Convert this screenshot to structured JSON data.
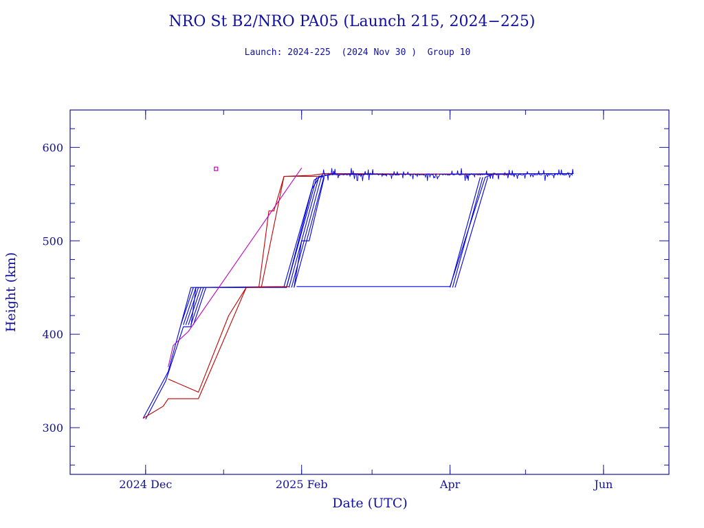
{
  "chart_data": {
    "type": "line",
    "title": "NRO St B2/NRO PA05 (Launch 215, 2024−225)",
    "subtitle": "Launch: 2024-225  (2024 Nov 30 )  Group 10",
    "xlabel": "Date (UTC)",
    "ylabel": "Height (km)",
    "x_axis_kind": "date",
    "xlim": [
      "2024-11-01",
      "2025-06-27"
    ],
    "ylim": [
      250,
      640
    ],
    "x_ticks": [
      {
        "date": "2024-12-01",
        "label": "2024 Dec"
      },
      {
        "date": "2025-02-01",
        "label": "2025 Feb"
      },
      {
        "date": "2025-04-01",
        "label": "Apr"
      },
      {
        "date": "2025-06-01",
        "label": "Jun"
      }
    ],
    "x_minor_ticks": [
      "2024-11-01",
      "2024-12-01",
      "2025-01-01",
      "2025-02-01",
      "2025-03-01",
      "2025-04-01",
      "2025-05-01",
      "2025-06-01"
    ],
    "y_ticks": [
      300,
      400,
      500,
      600
    ],
    "y_minor_step": 20,
    "grid": false,
    "colors": {
      "axis": "#1010a0",
      "blue_series": "#0000e0",
      "red_series": "#c00000",
      "magenta_series": "#c000c0"
    },
    "series": [
      {
        "color": "#0000e0",
        "lines": [
          [
            [
              "2024-11-30",
              310
            ],
            [
              "2024-12-10",
              360
            ],
            [
              "2024-12-19",
              450
            ],
            [
              "2025-01-25",
              451
            ],
            [
              "2025-02-05",
              555
            ],
            [
              "2025-02-08",
              568
            ],
            [
              "2025-02-12",
              571
            ],
            [
              "2025-05-20",
              572
            ]
          ],
          [
            [
              "2024-12-01",
              309
            ],
            [
              "2024-12-09",
              350
            ],
            [
              "2024-12-16",
              408
            ],
            [
              "2024-12-19",
              408
            ],
            [
              "2024-12-21",
              450
            ],
            [
              "2025-01-26",
              450
            ],
            [
              "2025-02-06",
              565
            ],
            [
              "2025-02-09",
              570
            ]
          ],
          [
            [
              "2024-12-15",
              410
            ],
            [
              "2024-12-20",
              450
            ]
          ],
          [
            [
              "2024-12-16",
              410
            ],
            [
              "2024-12-21",
              450
            ]
          ],
          [
            [
              "2024-12-17",
              410
            ],
            [
              "2024-12-22",
              450
            ]
          ],
          [
            [
              "2024-12-18",
              410
            ],
            [
              "2024-12-23",
              450
            ]
          ],
          [
            [
              "2024-12-19",
              410
            ],
            [
              "2024-12-24",
              450
            ]
          ],
          [
            [
              "2024-12-20",
              410
            ],
            [
              "2024-12-25",
              450
            ]
          ],
          [
            [
              "2025-01-26",
              450
            ],
            [
              "2025-02-07",
              568
            ]
          ],
          [
            [
              "2025-01-27",
              450
            ],
            [
              "2025-02-08",
              570
            ]
          ],
          [
            [
              "2025-01-28",
              450
            ],
            [
              "2025-02-09",
              570
            ]
          ],
          [
            [
              "2025-01-29",
              450
            ],
            [
              "2025-02-01",
              500
            ],
            [
              "2025-02-04",
              500
            ],
            [
              "2025-02-10",
              568
            ]
          ],
          [
            [
              "2025-01-29",
              450
            ],
            [
              "2025-02-10",
              570
            ]
          ],
          [
            [
              "2025-01-30",
              451
            ],
            [
              "2025-04-01",
              451
            ],
            [
              "2025-04-15",
              568
            ],
            [
              "2025-04-18",
              571
            ]
          ],
          [
            [
              "2025-04-01",
              450
            ],
            [
              "2025-04-13",
              568
            ]
          ],
          [
            [
              "2025-04-02",
              450
            ],
            [
              "2025-04-14",
              568
            ]
          ],
          [
            [
              "2025-04-03",
              450
            ],
            [
              "2025-04-16",
              568
            ]
          ]
        ]
      },
      {
        "color": "#c00000",
        "lines": [
          [
            [
              "2024-11-30",
              310
            ],
            [
              "2024-12-08",
              323
            ],
            [
              "2024-12-10",
              331
            ],
            [
              "2024-12-22",
              331
            ],
            [
              "2025-01-10",
              450
            ],
            [
              "2025-01-27",
              451
            ]
          ],
          [
            [
              "2024-12-10",
              352
            ],
            [
              "2024-12-22",
              338
            ],
            [
              "2025-01-03",
              420
            ],
            [
              "2025-01-10",
              450
            ]
          ],
          [
            [
              "2025-01-15",
              450
            ],
            [
              "2025-01-19",
              532
            ],
            [
              "2025-01-21",
              532
            ],
            [
              "2025-01-25",
              569
            ],
            [
              "2025-02-05",
              570
            ],
            [
              "2025-02-10",
              572
            ],
            [
              "2025-04-25",
              571
            ]
          ],
          [
            [
              "2025-01-16",
              450
            ],
            [
              "2025-01-25",
              569
            ],
            [
              "2025-02-08",
              569
            ]
          ]
        ]
      },
      {
        "color": "#c000c0",
        "lines": [
          [
            [
              "2024-12-10",
              365
            ],
            [
              "2024-12-12",
              388
            ],
            [
              "2024-12-18",
              403
            ],
            [
              "2025-02-01",
              578
            ]
          ]
        ]
      }
    ],
    "noise_band": {
      "from": "2025-02-09",
      "to": "2025-05-20",
      "center": 571,
      "amplitude": 7
    },
    "marker": {
      "date": "2024-12-29",
      "y": 577,
      "color": "#c000c0"
    }
  }
}
